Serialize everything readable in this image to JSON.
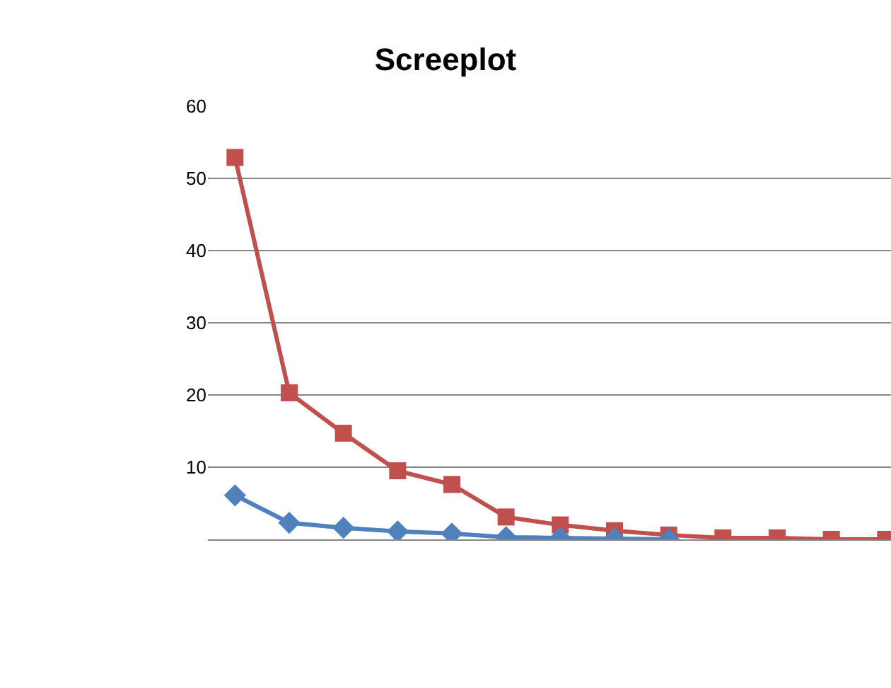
{
  "chart_data": {
    "type": "line",
    "title": "Screeplot",
    "categories": [
      null,
      null,
      null,
      null,
      null,
      null,
      null,
      null,
      null,
      null,
      null,
      null,
      null
    ],
    "series": [
      {
        "color": "#c0504d",
        "marker": "square",
        "values": [
          52.9,
          20.3,
          14.7,
          9.5,
          7.6,
          3.1,
          2.0,
          1.2,
          0.6,
          0.2,
          0.2,
          0,
          0
        ]
      },
      {
        "color": "#4f81bd",
        "marker": "diamond",
        "values": [
          6.1,
          2.3,
          1.6,
          1.1,
          0.8,
          0.3,
          0.2,
          0.1,
          0,
          null,
          null,
          null,
          null
        ]
      }
    ],
    "ylim": [
      0,
      60
    ],
    "yticks": [
      {
        "value": 0,
        "label": null
      },
      10,
      20,
      30,
      40,
      50,
      60
    ],
    "grid": "y",
    "line_style": "solid"
  }
}
